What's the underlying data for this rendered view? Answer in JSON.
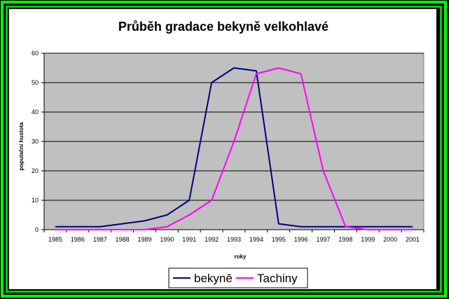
{
  "chart_data": {
    "type": "line",
    "title": "Průběh gradace bekyně velkohlavé",
    "xlabel": "roky",
    "ylabel": "populační hustota",
    "categories": [
      "1985",
      "1986",
      "1987",
      "1988",
      "1989",
      "1990",
      "1991",
      "1992",
      "1993",
      "1994",
      "1995",
      "1996",
      "1997",
      "1998",
      "1999",
      "2000",
      "2001"
    ],
    "ylim": [
      0,
      60
    ],
    "yticks": [
      0,
      10,
      20,
      30,
      40,
      50,
      60
    ],
    "grid": true,
    "legend": "bottom",
    "series": [
      {
        "name": "bekyně",
        "color": "#000080",
        "values": [
          1,
          1,
          1,
          2,
          3,
          5,
          10,
          50,
          55,
          54,
          2,
          1,
          1,
          1,
          1,
          1,
          1
        ]
      },
      {
        "name": "Tachiny",
        "color": "#ff00ff",
        "values": [
          0,
          0,
          0,
          0,
          0,
          1,
          5,
          10,
          30,
          53,
          55,
          53,
          20,
          1,
          0,
          0,
          0
        ]
      }
    ],
    "plot_background": "#c0c0c0"
  }
}
